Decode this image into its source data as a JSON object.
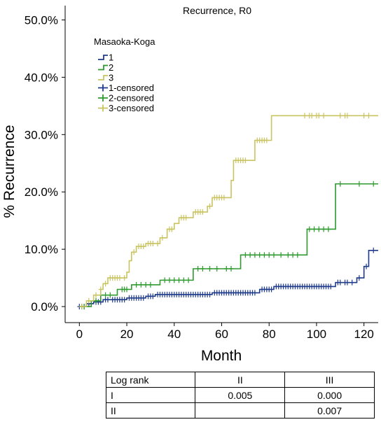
{
  "chart_data": {
    "type": "line",
    "title": "Recurrence, R0",
    "xlabel": "Month",
    "ylabel": "% Recurrence",
    "xlim": [
      -6,
      126
    ],
    "ylim": [
      -2.8,
      52.5
    ],
    "x_ticks": [
      0,
      20,
      40,
      60,
      80,
      100,
      120
    ],
    "y_ticks": [
      0,
      10,
      20,
      30,
      40,
      50
    ],
    "y_tick_labels": [
      "0.0%",
      "10.0%",
      "20.0%",
      "30.0%",
      "40.0%",
      "50.0%"
    ],
    "grid": false,
    "legend": {
      "title": "Masaoka-Koga",
      "placement": "top-left",
      "entries": [
        {
          "label": "1",
          "kind": "line",
          "color": "#1f3a8a"
        },
        {
          "label": "2",
          "kind": "line",
          "color": "#2e9a2e"
        },
        {
          "label": "3",
          "kind": "line",
          "color": "#c9c461"
        },
        {
          "label": "1-censored",
          "kind": "censor",
          "color": "#1f3a8a"
        },
        {
          "label": "2-censored",
          "kind": "censor",
          "color": "#2e9a2e"
        },
        {
          "label": "3-censored",
          "kind": "censor",
          "color": "#c9c461"
        }
      ]
    },
    "series": [
      {
        "name": "1",
        "color": "#1f3a8a",
        "steps": [
          [
            0,
            0
          ],
          [
            3,
            0.5
          ],
          [
            6,
            0.8
          ],
          [
            10,
            1.2
          ],
          [
            20,
            1.5
          ],
          [
            28,
            1.8
          ],
          [
            32,
            2.1
          ],
          [
            56,
            2.4
          ],
          [
            76,
            3.0
          ],
          [
            82,
            3.5
          ],
          [
            108,
            4.2
          ],
          [
            117,
            5.0
          ],
          [
            120,
            7.0
          ],
          [
            122,
            9.8
          ],
          [
            126,
            9.8
          ]
        ],
        "censors": [
          0,
          1,
          2,
          4,
          5,
          7,
          8,
          9,
          11,
          12,
          14,
          15,
          16,
          17,
          18,
          19,
          21,
          22,
          23,
          24,
          25,
          26,
          27,
          29,
          30,
          31,
          33,
          34,
          35,
          36,
          37,
          38,
          39,
          40,
          41,
          42,
          43,
          44,
          45,
          46,
          47,
          48,
          49,
          50,
          51,
          52,
          53,
          54,
          55,
          57,
          58,
          59,
          60,
          61,
          62,
          63,
          64,
          65,
          66,
          67,
          68,
          69,
          70,
          71,
          72,
          73,
          74,
          77,
          78,
          79,
          80,
          81,
          83,
          84,
          85,
          86,
          87,
          88,
          89,
          90,
          91,
          92,
          93,
          94,
          95,
          96,
          97,
          98,
          99,
          100,
          101,
          102,
          103,
          104,
          105,
          106,
          109,
          110,
          112,
          113,
          115,
          118,
          121,
          124
        ]
      },
      {
        "name": "2",
        "color": "#2e9a2e",
        "steps": [
          [
            0,
            0
          ],
          [
            5,
            1.0
          ],
          [
            9,
            2.0
          ],
          [
            16,
            3.0
          ],
          [
            22,
            3.8
          ],
          [
            34,
            4.6
          ],
          [
            48,
            6.6
          ],
          [
            68,
            9.0
          ],
          [
            96,
            13.5
          ],
          [
            108,
            21.4
          ],
          [
            126,
            21.4
          ]
        ],
        "censors": [
          2,
          7,
          11,
          13,
          18,
          19,
          20,
          24,
          26,
          28,
          30,
          36,
          38,
          40,
          42,
          44,
          46,
          50,
          52,
          55,
          58,
          62,
          64,
          70,
          72,
          74,
          76,
          78,
          80,
          82,
          85,
          88,
          90,
          92,
          97,
          99,
          101,
          103,
          105,
          110,
          118,
          124
        ]
      },
      {
        "name": "3",
        "color": "#c9c461",
        "steps": [
          [
            0,
            0
          ],
          [
            3,
            1.0
          ],
          [
            6,
            2.0
          ],
          [
            9,
            3.0
          ],
          [
            10,
            4.0
          ],
          [
            12,
            5.0
          ],
          [
            20,
            6.0
          ],
          [
            21,
            8.0
          ],
          [
            22,
            9.5
          ],
          [
            24,
            10.5
          ],
          [
            28,
            11.0
          ],
          [
            34,
            12.0
          ],
          [
            37,
            13.5
          ],
          [
            40,
            14.5
          ],
          [
            42,
            15.5
          ],
          [
            48,
            16.5
          ],
          [
            54,
            17.5
          ],
          [
            56,
            19.0
          ],
          [
            64,
            22.0
          ],
          [
            65,
            25.5
          ],
          [
            74,
            29.0
          ],
          [
            81,
            33.3
          ],
          [
            126,
            33.3
          ]
        ],
        "censors": [
          1,
          4,
          7,
          9,
          11,
          13,
          14,
          15,
          16,
          17,
          19,
          23,
          25,
          26,
          27,
          29,
          30,
          31,
          33,
          35,
          38,
          39,
          43,
          44,
          45,
          49,
          50,
          51,
          52,
          55,
          57,
          58,
          59,
          60,
          61,
          66,
          67,
          68,
          69,
          70,
          75,
          76,
          77,
          78,
          79,
          95,
          97,
          98,
          100,
          101,
          103,
          110,
          112,
          113,
          120,
          122
        ]
      }
    ]
  },
  "logrank_table": {
    "header": [
      "Log rank",
      "II",
      "III"
    ],
    "rows": [
      [
        "I",
        "0.005",
        "0.000"
      ],
      [
        "II",
        "",
        "0.007"
      ]
    ]
  }
}
